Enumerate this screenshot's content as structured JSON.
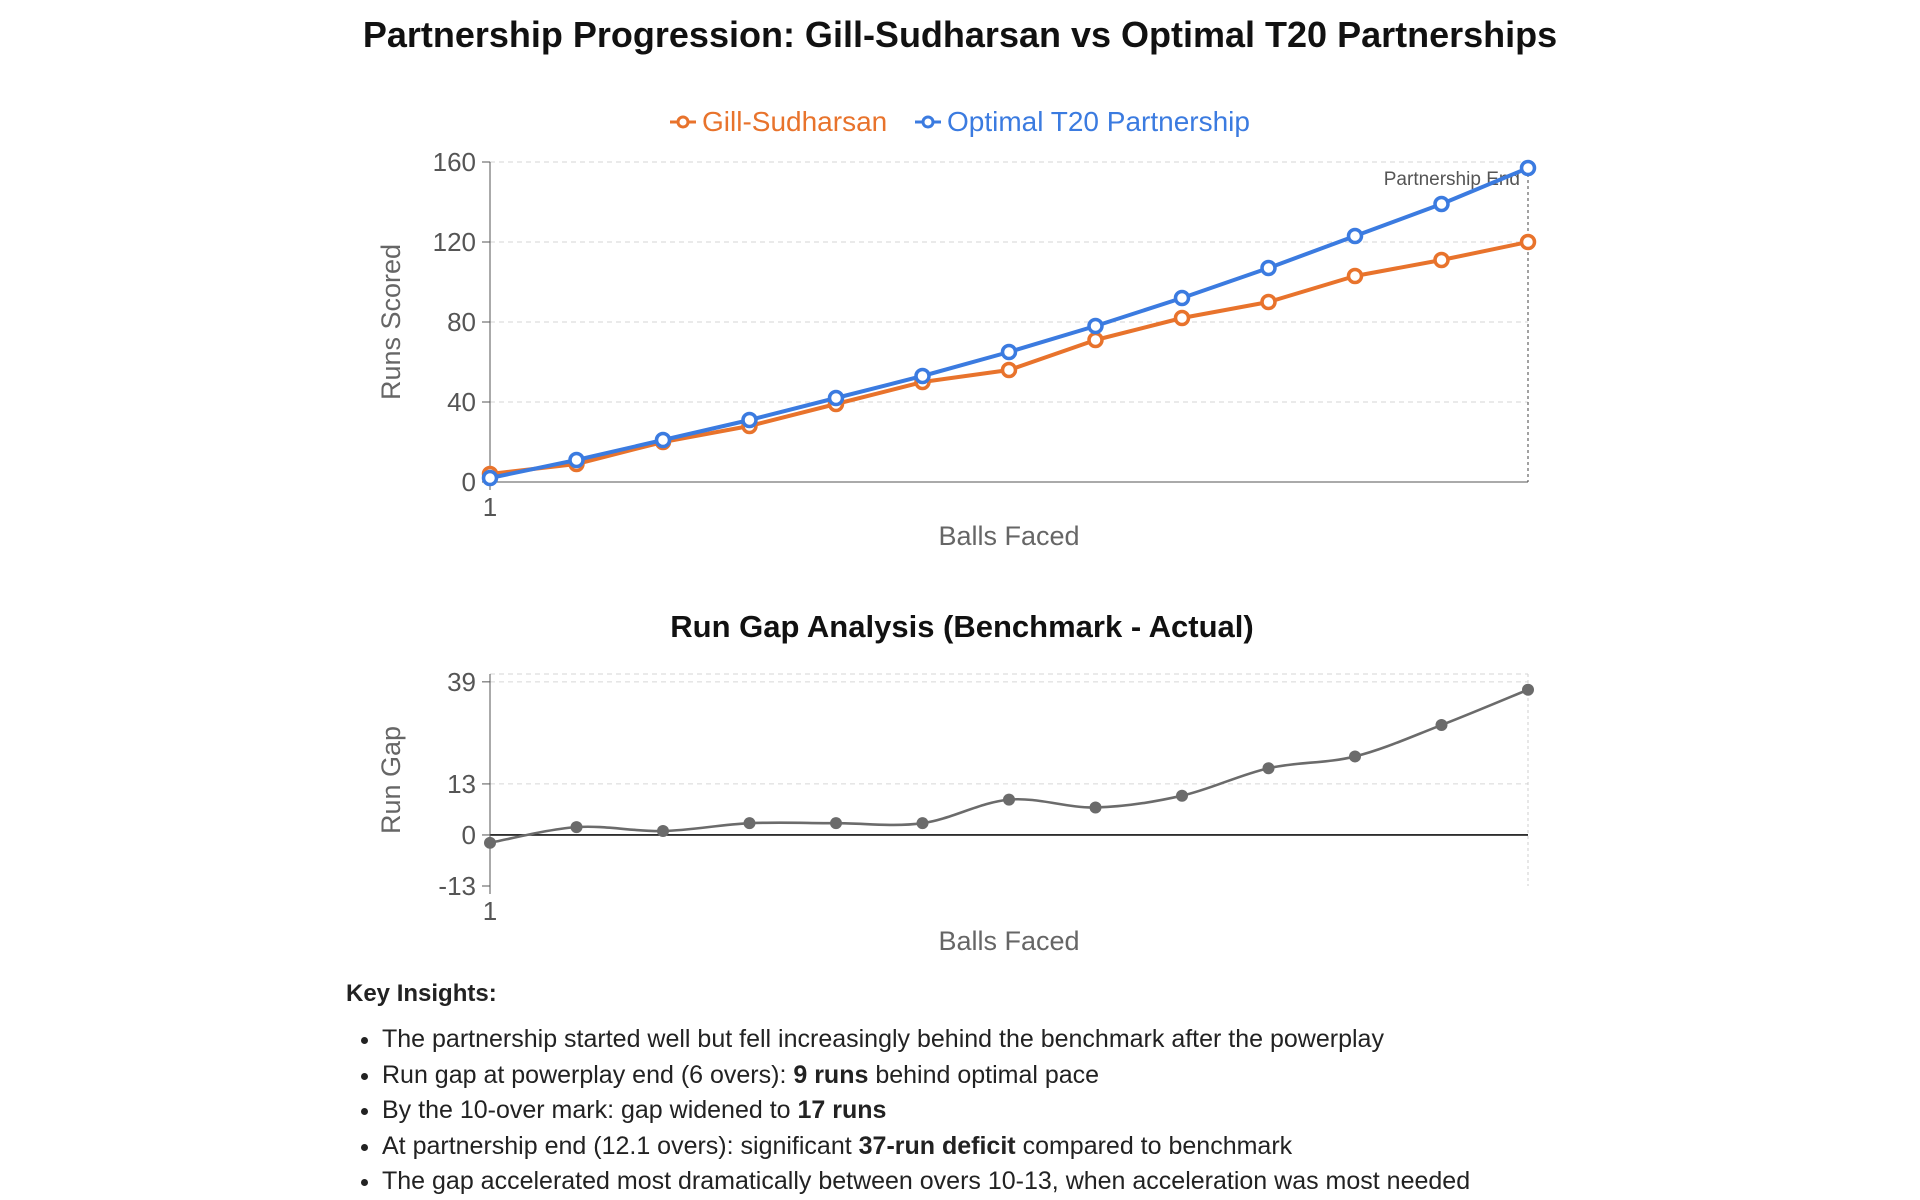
{
  "title": "Partnership Progression: Gill-Sudharsan vs Optimal T20 Partnerships",
  "legend": [
    {
      "label": "Gill-Sudharsan",
      "color": "#E8732C"
    },
    {
      "label": "Optimal T20 Partnership",
      "color": "#3B7BE0"
    }
  ],
  "chart_data": [
    {
      "type": "line",
      "title": "",
      "xlabel": "Balls Faced",
      "ylabel": "Runs Scored",
      "x_tick_labels": [
        "1"
      ],
      "y_ticks": [
        0,
        40,
        80,
        120,
        160
      ],
      "ylim": [
        0,
        160
      ],
      "grid": "horizontal dashed",
      "legend_position": "top-center",
      "annotation": "Partnership End",
      "series": [
        {
          "name": "Gill-Sudharsan",
          "color": "#E8732C",
          "values": [
            4,
            9,
            20,
            28,
            39,
            50,
            56,
            71,
            82,
            90,
            103,
            111,
            120
          ]
        },
        {
          "name": "Optimal T20 Partnership",
          "color": "#3B7BE0",
          "values": [
            2,
            11,
            21,
            31,
            42,
            53,
            65,
            78,
            92,
            107,
            123,
            139,
            157
          ]
        }
      ]
    },
    {
      "type": "line",
      "title": "Run Gap Analysis (Benchmark - Actual)",
      "xlabel": "Balls Faced",
      "ylabel": "Run Gap",
      "x_tick_labels": [
        "1"
      ],
      "y_ticks": [
        -13,
        0,
        13,
        39
      ],
      "ylim": [
        -13,
        41
      ],
      "grid": "horizontal dashed",
      "series": [
        {
          "color": "#6b6b6b",
          "values": [
            -2,
            2,
            1,
            3,
            3,
            3,
            9,
            7,
            10,
            17,
            20,
            28,
            37
          ]
        }
      ]
    }
  ],
  "insights": {
    "title": "Key Insights:",
    "items": [
      {
        "parts": [
          {
            "t": "The partnership started well but fell increasingly behind the benchmark after the powerplay",
            "b": false
          }
        ]
      },
      {
        "parts": [
          {
            "t": "Run gap at powerplay end (6 overs): ",
            "b": false
          },
          {
            "t": "9 runs",
            "b": true
          },
          {
            "t": " behind optimal pace",
            "b": false
          }
        ]
      },
      {
        "parts": [
          {
            "t": "By the 10-over mark: gap widened to ",
            "b": false
          },
          {
            "t": "17 runs",
            "b": true
          }
        ]
      },
      {
        "parts": [
          {
            "t": "At partnership end (12.1 overs): significant ",
            "b": false
          },
          {
            "t": "37-run deficit",
            "b": true
          },
          {
            "t": " compared to benchmark",
            "b": false
          }
        ]
      },
      {
        "parts": [
          {
            "t": "The gap accelerated most dramatically between overs 10-13, when acceleration was most needed",
            "b": false
          }
        ]
      }
    ]
  }
}
